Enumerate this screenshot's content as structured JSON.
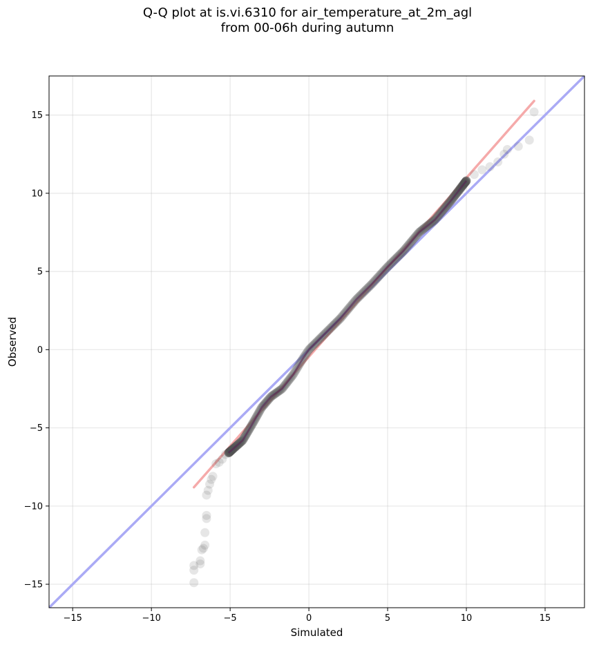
{
  "chart_data": {
    "type": "scatter",
    "title_lines": [
      "Q-Q plot at is.vi.6310 for air_temperature_at_2m_agl",
      "from 00-06h during autumn"
    ],
    "xlabel": "Simulated",
    "ylabel": "Observed",
    "xlim": [
      -16.5,
      17.5
    ],
    "ylim": [
      -16.5,
      17.5
    ],
    "xticks": [
      -15,
      -10,
      -5,
      0,
      5,
      10,
      15
    ],
    "yticks": [
      -15,
      -10,
      -5,
      0,
      5,
      10,
      15
    ],
    "xtick_labels": [
      "−15",
      "−10",
      "−5",
      "0",
      "5",
      "10",
      "15"
    ],
    "ytick_labels": [
      "−15",
      "−10",
      "−5",
      "0",
      "5",
      "10",
      "15"
    ],
    "grid": true,
    "reference_lines": [
      {
        "kind": "identity_1to1",
        "color": "#aaaaf5",
        "x": [
          -16.5,
          17.5
        ],
        "y": [
          -16.5,
          17.5
        ]
      },
      {
        "kind": "fit",
        "color": "#f5aaaa",
        "x": [
          -7.3,
          14.3
        ],
        "y": [
          -8.8,
          15.9
        ]
      }
    ],
    "point_color": "#555555",
    "tail_points": [
      {
        "x": -7.3,
        "y": -14.9
      },
      {
        "x": -7.3,
        "y": -14.1
      },
      {
        "x": -7.3,
        "y": -13.8
      },
      {
        "x": -6.9,
        "y": -13.7
      },
      {
        "x": -6.9,
        "y": -13.5
      },
      {
        "x": -6.8,
        "y": -12.8
      },
      {
        "x": -6.7,
        "y": -12.7
      },
      {
        "x": -6.6,
        "y": -12.5
      },
      {
        "x": -6.6,
        "y": -11.7
      },
      {
        "x": -6.5,
        "y": -10.8
      },
      {
        "x": -6.5,
        "y": -10.6
      },
      {
        "x": -6.5,
        "y": -9.3
      },
      {
        "x": -6.4,
        "y": -9.0
      },
      {
        "x": -6.3,
        "y": -8.6
      },
      {
        "x": -6.2,
        "y": -8.3
      },
      {
        "x": -6.1,
        "y": -8.1
      },
      {
        "x": -5.9,
        "y": -7.3
      },
      {
        "x": -5.7,
        "y": -7.2
      },
      {
        "x": -5.5,
        "y": -7.0
      },
      {
        "x": -5.3,
        "y": -6.7
      },
      {
        "x": -5.1,
        "y": -6.6
      },
      {
        "x": 10.0,
        "y": 10.8
      },
      {
        "x": 10.5,
        "y": 11.2
      },
      {
        "x": 11.0,
        "y": 11.5
      },
      {
        "x": 11.5,
        "y": 11.7
      },
      {
        "x": 12.0,
        "y": 12.0
      },
      {
        "x": 12.4,
        "y": 12.5
      },
      {
        "x": 12.6,
        "y": 12.8
      },
      {
        "x": 13.3,
        "y": 13.0
      },
      {
        "x": 14.0,
        "y": 13.4
      },
      {
        "x": 14.3,
        "y": 15.2
      }
    ],
    "bulk_curve": [
      {
        "x": -5.1,
        "y": -6.6
      },
      {
        "x": -4.2,
        "y": -5.8
      },
      {
        "x": -3.5,
        "y": -4.6
      },
      {
        "x": -3.0,
        "y": -3.7
      },
      {
        "x": -2.4,
        "y": -3.0
      },
      {
        "x": -1.7,
        "y": -2.5
      },
      {
        "x": -1.0,
        "y": -1.6
      },
      {
        "x": -0.4,
        "y": -0.6
      },
      {
        "x": 0.0,
        "y": 0.0
      },
      {
        "x": 1.0,
        "y": 1.0
      },
      {
        "x": 2.0,
        "y": 2.0
      },
      {
        "x": 3.0,
        "y": 3.2
      },
      {
        "x": 4.0,
        "y": 4.2
      },
      {
        "x": 5.0,
        "y": 5.3
      },
      {
        "x": 6.0,
        "y": 6.3
      },
      {
        "x": 7.0,
        "y": 7.5
      },
      {
        "x": 8.0,
        "y": 8.3
      },
      {
        "x": 9.0,
        "y": 9.5
      },
      {
        "x": 10.0,
        "y": 10.8
      }
    ],
    "bulk_point_count": 380
  }
}
